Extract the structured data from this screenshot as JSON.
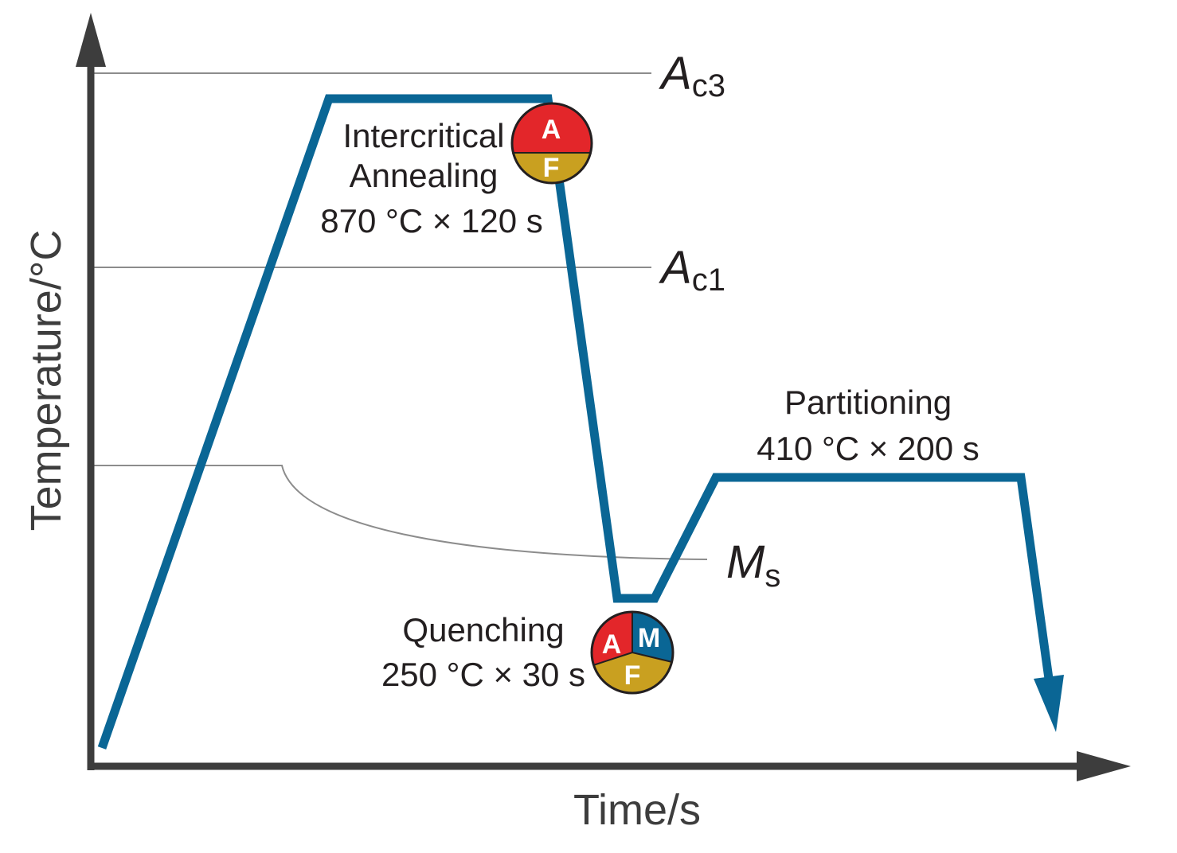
{
  "axes": {
    "y_title": "Temperature/°C",
    "x_title": "Time/s"
  },
  "critical_lines": {
    "ac3": {
      "main": "A",
      "sub": "c3"
    },
    "ac1": {
      "main": "A",
      "sub": "c1"
    },
    "ms": {
      "main": "M",
      "sub": "s"
    }
  },
  "stages": {
    "intercritical": {
      "line1": "Intercritical",
      "line2": "Annealing",
      "line3": "870 °C × 120 s",
      "phases": [
        "A",
        "F"
      ]
    },
    "quenching": {
      "line1": "Quenching",
      "line2": "250 °C × 30 s",
      "phases": [
        "A",
        "M",
        "F"
      ]
    },
    "partitioning": {
      "line1": "Partitioning",
      "line2": "410 °C × 200 s"
    }
  },
  "colors": {
    "path": "#0a6695",
    "axis": "#3d3d3d",
    "reference_line": "#8c8c8c",
    "austenite": "#e3262a",
    "ferrite": "#c9a020",
    "martensite": "#0a6695"
  }
}
